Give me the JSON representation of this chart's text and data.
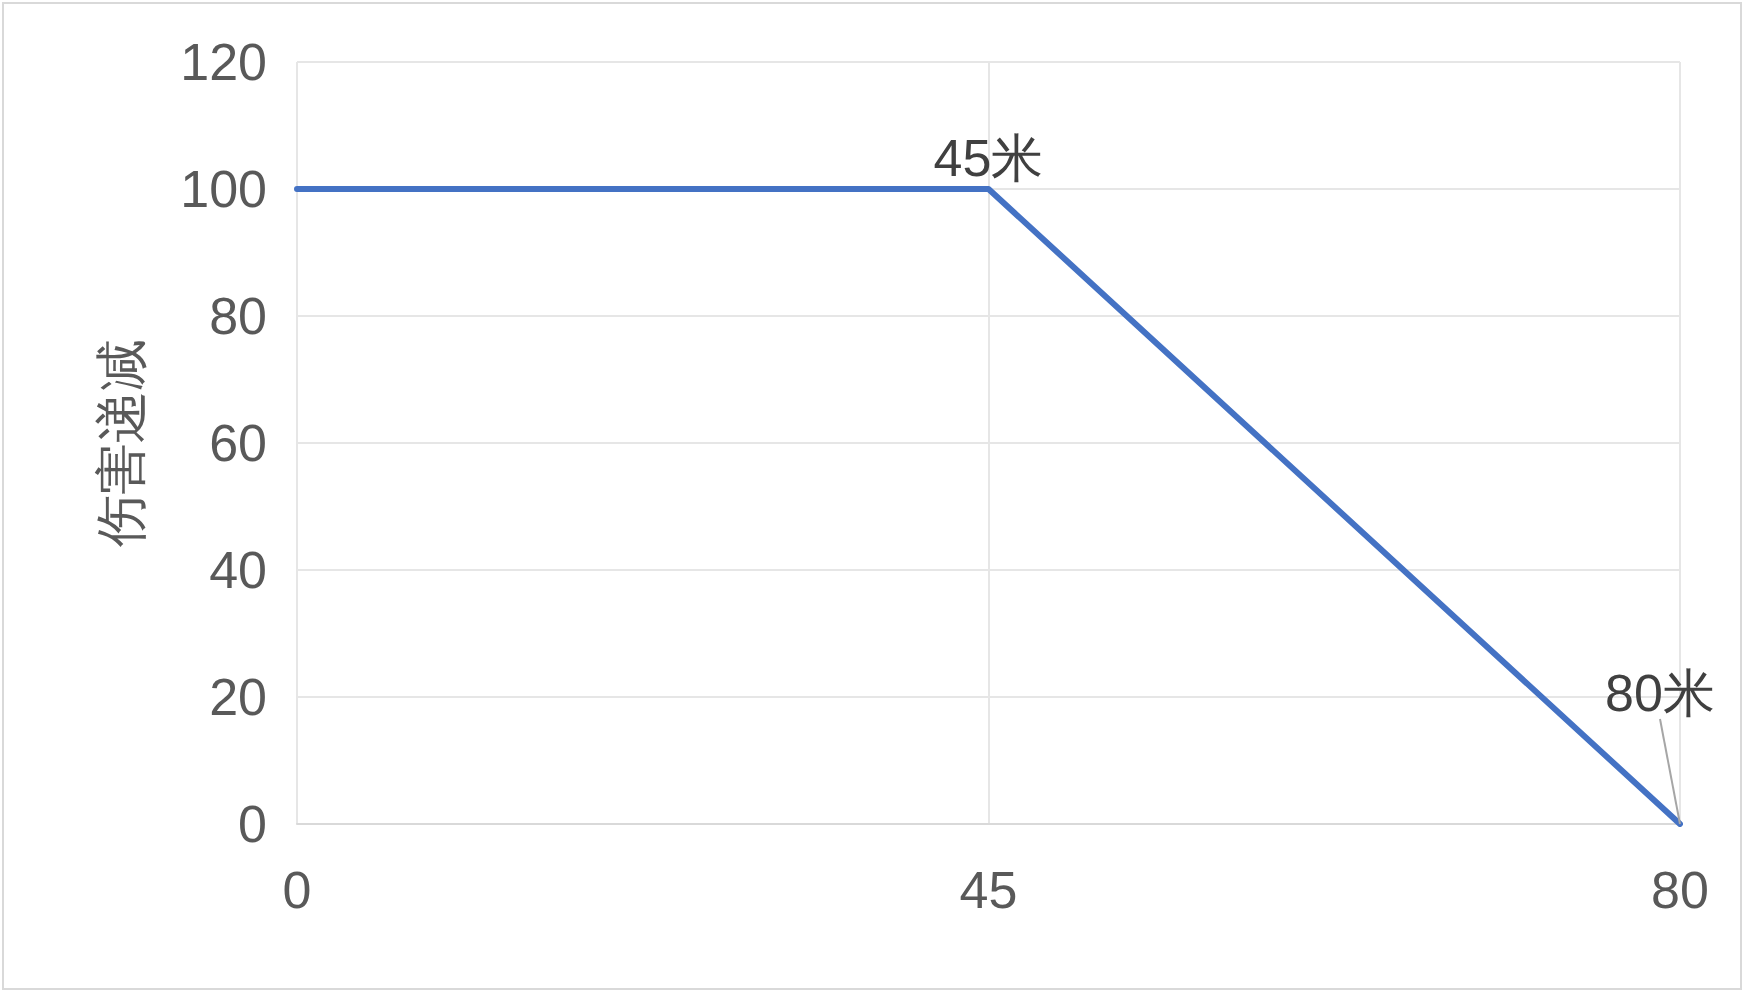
{
  "chart_data": {
    "type": "line",
    "ylabel": "伤害递减",
    "categories": [
      "0",
      "45",
      "80"
    ],
    "series": [
      {
        "color": "#4472c4",
        "values": [
          100,
          100,
          0
        ]
      }
    ],
    "ylim": [
      0,
      120
    ],
    "yticks": [
      0,
      20,
      40,
      60,
      80,
      100,
      120
    ],
    "grid": true,
    "marker": "none",
    "line_style": "solid",
    "annotations": [
      {
        "text": "45米",
        "x": "45",
        "y": 100
      },
      {
        "text": "80米",
        "x": "80",
        "y": 0
      }
    ]
  }
}
